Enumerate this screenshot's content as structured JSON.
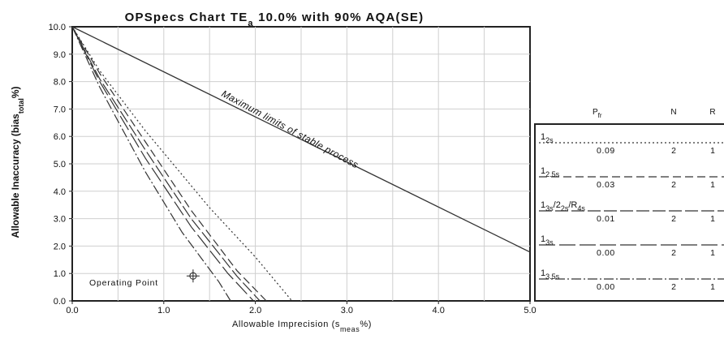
{
  "chart_data": {
    "type": "line",
    "title": {
      "prefix": "OPSpecs Chart TE",
      "sub": "a",
      "suffix": " 10.0%  with 90% AQA(SE)"
    },
    "xlabel": {
      "prefix": "Allowable Imprecision (s",
      "sub": "meas",
      "suffix": "%)"
    },
    "ylabel": {
      "prefix": "Allowable Inaccuracy (bias",
      "sub": "total",
      "suffix": "%)"
    },
    "xlim": [
      0,
      5
    ],
    "ylim": [
      0,
      10
    ],
    "xticks": [
      {
        "v": 0,
        "label": "0.0"
      },
      {
        "v": 1,
        "label": "1.0"
      },
      {
        "v": 2,
        "label": "2.0"
      },
      {
        "v": 3,
        "label": "3.0"
      },
      {
        "v": 4,
        "label": "4.0"
      },
      {
        "v": 5,
        "label": "5.0"
      }
    ],
    "yticks": [
      {
        "v": 0,
        "label": "0.0"
      },
      {
        "v": 1,
        "label": "1.0"
      },
      {
        "v": 2,
        "label": "2.0"
      },
      {
        "v": 3,
        "label": "3.0"
      },
      {
        "v": 4,
        "label": "4.0"
      },
      {
        "v": 5,
        "label": "5.0"
      },
      {
        "v": 6,
        "label": "6.0"
      },
      {
        "v": 7,
        "label": "7.0"
      },
      {
        "v": 8,
        "label": "8.0"
      },
      {
        "v": 9,
        "label": "9.0"
      },
      {
        "v": 10,
        "label": "10.0"
      }
    ],
    "grid": true,
    "max_line": {
      "label": "Maximum limits of stable process",
      "points": [
        [
          0,
          10
        ],
        [
          5,
          1.78
        ]
      ]
    },
    "series": [
      {
        "key": "s1",
        "dash": "2,3",
        "points": [
          [
            0,
            10
          ],
          [
            0.3,
            8.4
          ],
          [
            0.8,
            6.2
          ],
          [
            1.5,
            3.4
          ],
          [
            2.0,
            1.6
          ],
          [
            2.4,
            0
          ]
        ]
      },
      {
        "key": "s2",
        "dash": "10,5",
        "points": [
          [
            0,
            10
          ],
          [
            0.3,
            8.3
          ],
          [
            0.8,
            5.8
          ],
          [
            1.3,
            3.3
          ],
          [
            1.8,
            1.1
          ],
          [
            2.12,
            0
          ]
        ]
      },
      {
        "key": "s3",
        "dash": "16,4",
        "points": [
          [
            0,
            10
          ],
          [
            0.3,
            8.1
          ],
          [
            0.8,
            5.5
          ],
          [
            1.3,
            3.0
          ],
          [
            1.8,
            0.9
          ],
          [
            2.05,
            0
          ]
        ]
      },
      {
        "key": "s4",
        "dash": "20,5",
        "points": [
          [
            0,
            10
          ],
          [
            0.3,
            8.0
          ],
          [
            0.8,
            5.2
          ],
          [
            1.3,
            2.7
          ],
          [
            1.7,
            1.0
          ],
          [
            1.98,
            0
          ]
        ]
      },
      {
        "key": "s5",
        "dash": "12,3,2,3",
        "points": [
          [
            0,
            10
          ],
          [
            0.3,
            7.8
          ],
          [
            0.8,
            4.7
          ],
          [
            1.2,
            2.5
          ],
          [
            1.6,
            0.7
          ],
          [
            1.73,
            0
          ]
        ]
      }
    ],
    "operating_point": {
      "label": "Operating Point",
      "x": 1.32,
      "y": 0.91
    }
  },
  "legend": {
    "headers": {
      "pfr": {
        "main": "P",
        "sub": "fr"
      },
      "n": "N",
      "r": "R"
    },
    "rows": [
      {
        "key": "s1",
        "rule": [
          {
            "t": "1",
            "sub": "2s"
          }
        ],
        "pfr": "0.09",
        "n": "2",
        "r": "1"
      },
      {
        "key": "s2",
        "rule": [
          {
            "t": "1",
            "sub": "2.5s"
          }
        ],
        "pfr": "0.03",
        "n": "2",
        "r": "1"
      },
      {
        "key": "s3",
        "rule": [
          {
            "t": "1",
            "sub": "3s"
          },
          {
            "t": "/2",
            "sub": "2s"
          },
          {
            "t": "/R",
            "sub": "4s"
          }
        ],
        "pfr": "0.01",
        "n": "2",
        "r": "1"
      },
      {
        "key": "s4",
        "rule": [
          {
            "t": "1",
            "sub": "3s"
          }
        ],
        "pfr": "0.00",
        "n": "2",
        "r": "1"
      },
      {
        "key": "s5",
        "rule": [
          {
            "t": "1",
            "sub": "3.5s"
          }
        ],
        "pfr": "0.00",
        "n": "2",
        "r": "1"
      }
    ]
  }
}
